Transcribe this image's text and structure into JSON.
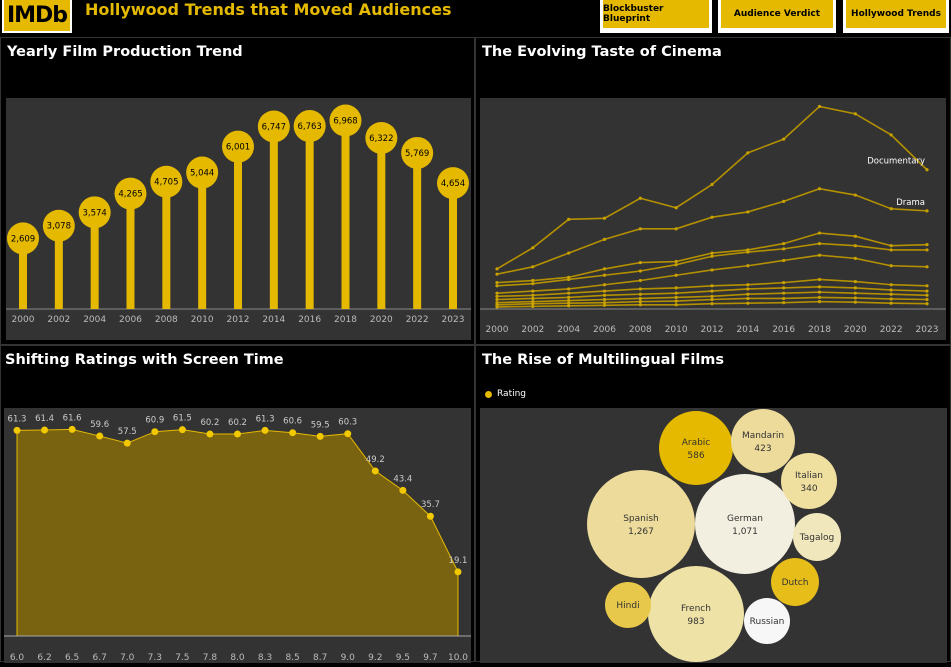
{
  "header": {
    "logo_text": "IMDb",
    "title": "Hollywood Trends that Moved Audiences",
    "nav": [
      "Blockbuster Blueprint",
      "Audience Verdict",
      "Hollywood Trends"
    ]
  },
  "colors": {
    "accent": "#e5b900",
    "panel_bg": "#333333",
    "page_bg": "#000000"
  },
  "panels": {
    "p1": {
      "title": "Yearly Film Production Trend"
    },
    "p2": {
      "title": "The Evolving Taste of Cinema"
    },
    "p3": {
      "title": "Shifting Ratings with Screen Time"
    },
    "p4": {
      "title": "The Rise of Multilingual Films",
      "legend_label": "Rating"
    }
  },
  "chart_data": [
    {
      "id": "production",
      "type": "bar",
      "title": "Yearly Film Production Trend",
      "categories": [
        "2000",
        "2002",
        "2004",
        "2006",
        "2008",
        "2010",
        "2012",
        "2014",
        "2016",
        "2018",
        "2020",
        "2022",
        "2023"
      ],
      "values": [
        2609,
        3078,
        3574,
        4265,
        4705,
        5044,
        6001,
        6747,
        6763,
        6968,
        6322,
        5769,
        4654
      ],
      "value_labels": [
        "2,609",
        "3,078",
        "3,574",
        "4,265",
        "4,705",
        "5,044",
        "6,001",
        "6,747",
        "6,763",
        "6,968",
        "6,322",
        "5,769",
        "4,654"
      ],
      "ylim": [
        0,
        7800
      ]
    },
    {
      "id": "genres",
      "type": "line",
      "title": "The Evolving Taste of Cinema",
      "x": [
        "2000",
        "2002",
        "2004",
        "2006",
        "2008",
        "2010",
        "2012",
        "2014",
        "2016",
        "2018",
        "2020",
        "2022",
        "2023"
      ],
      "ylim": [
        0,
        2000
      ],
      "series": [
        {
          "name": "Documentary",
          "values": [
            380,
            580,
            850,
            860,
            1050,
            960,
            1180,
            1480,
            1610,
            1920,
            1850,
            1650,
            1320
          ]
        },
        {
          "name": "Drama",
          "values": [
            330,
            400,
            530,
            660,
            760,
            760,
            870,
            920,
            1020,
            1140,
            1080,
            950,
            930
          ]
        },
        {
          "name": "",
          "values": [
            250,
            270,
            300,
            380,
            440,
            450,
            530,
            560,
            620,
            720,
            690,
            600,
            610
          ]
        },
        {
          "name": "",
          "values": [
            220,
            240,
            280,
            320,
            360,
            420,
            500,
            540,
            570,
            620,
            600,
            560,
            560
          ]
        },
        {
          "name": "",
          "values": [
            150,
            170,
            190,
            230,
            270,
            320,
            370,
            410,
            460,
            510,
            480,
            410,
            400
          ]
        },
        {
          "name": "",
          "values": [
            120,
            130,
            150,
            170,
            190,
            200,
            220,
            230,
            250,
            280,
            260,
            230,
            220
          ]
        },
        {
          "name": "",
          "values": [
            90,
            100,
            110,
            130,
            140,
            150,
            170,
            190,
            200,
            210,
            200,
            180,
            170
          ]
        },
        {
          "name": "",
          "values": [
            60,
            70,
            80,
            90,
            100,
            110,
            120,
            140,
            150,
            160,
            150,
            140,
            130
          ]
        },
        {
          "name": "",
          "values": [
            40,
            50,
            55,
            60,
            70,
            75,
            90,
            100,
            100,
            110,
            105,
            95,
            90
          ]
        },
        {
          "name": "",
          "values": [
            20,
            25,
            30,
            35,
            40,
            40,
            50,
            55,
            60,
            70,
            65,
            55,
            50
          ]
        }
      ]
    },
    {
      "id": "ratings",
      "type": "area",
      "title": "Shifting Ratings with Screen Time",
      "x": [
        "6.0",
        "6.2",
        "6.5",
        "6.7",
        "7.0",
        "7.3",
        "7.5",
        "7.8",
        "8.0",
        "8.3",
        "8.5",
        "8.7",
        "9.0",
        "9.2",
        "9.5",
        "9.7",
        "10.0"
      ],
      "values": [
        61.3,
        61.4,
        61.6,
        59.6,
        57.5,
        60.9,
        61.5,
        60.2,
        60.2,
        61.3,
        60.6,
        59.5,
        60.3,
        49.2,
        43.4,
        35.7,
        19.1
      ],
      "value_labels": [
        "61.3",
        "61.4",
        "61.6",
        "59.6",
        "57.5",
        "60.9",
        "61.5",
        "60.2",
        "60.2",
        "61.3",
        "60.6",
        "59.5",
        "60.3",
        "49.2",
        "43.4",
        "35.7",
        "19.1"
      ]
    },
    {
      "id": "languages",
      "type": "bubble",
      "title": "The Rise of Multilingual Films",
      "legend": [
        "Rating"
      ],
      "bubbles": [
        {
          "label": "Spanish",
          "value": 1267,
          "value_label": "1,267"
        },
        {
          "label": "German",
          "value": 1071,
          "value_label": "1,071"
        },
        {
          "label": "French",
          "value": 983,
          "value_label": "983"
        },
        {
          "label": "Arabic",
          "value": 586,
          "value_label": "586"
        },
        {
          "label": "Mandarin",
          "value": 423,
          "value_label": "423"
        },
        {
          "label": "Italian",
          "value": 340,
          "value_label": "340"
        },
        {
          "label": "Tagalog",
          "value": null,
          "value_label": ""
        },
        {
          "label": "Dutch",
          "value": null,
          "value_label": ""
        },
        {
          "label": "Hindi",
          "value": null,
          "value_label": ""
        },
        {
          "label": "Russian",
          "value": null,
          "value_label": ""
        }
      ]
    }
  ]
}
